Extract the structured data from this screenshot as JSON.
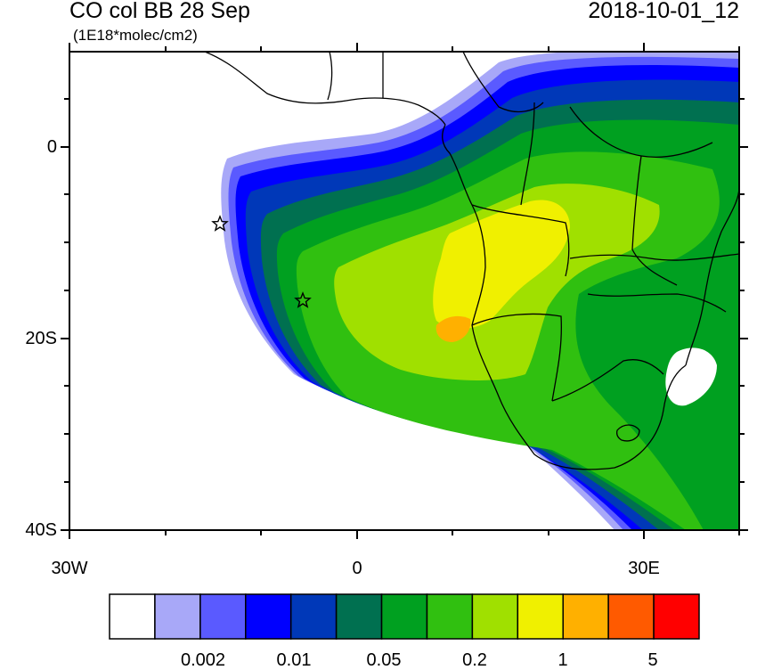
{
  "header": {
    "title": "CO col BB 28 Sep",
    "units": "(1E18*molec/cm2)",
    "datetime": "2018-10-01_12"
  },
  "axes": {
    "lat_labels": [
      "0",
      "20S",
      "40S"
    ],
    "lon_labels": [
      "30W",
      "0",
      "30E"
    ]
  },
  "markers": [
    {
      "name": "station-star",
      "lon": -14.4,
      "lat": -7.9
    },
    {
      "name": "station-star",
      "lon": -5.7,
      "lat": -15.9
    }
  ],
  "colorbar": {
    "colors": [
      "#ffffff",
      "#a8a8f8",
      "#5a5aff",
      "#0000ff",
      "#0038b8",
      "#007050",
      "#00a020",
      "#30c010",
      "#a0e000",
      "#f0f000",
      "#ffb000",
      "#ff5a00",
      "#ff0000"
    ],
    "labels": [
      "0.002",
      "0.01",
      "0.05",
      "0.2",
      "1",
      "5"
    ]
  }
}
